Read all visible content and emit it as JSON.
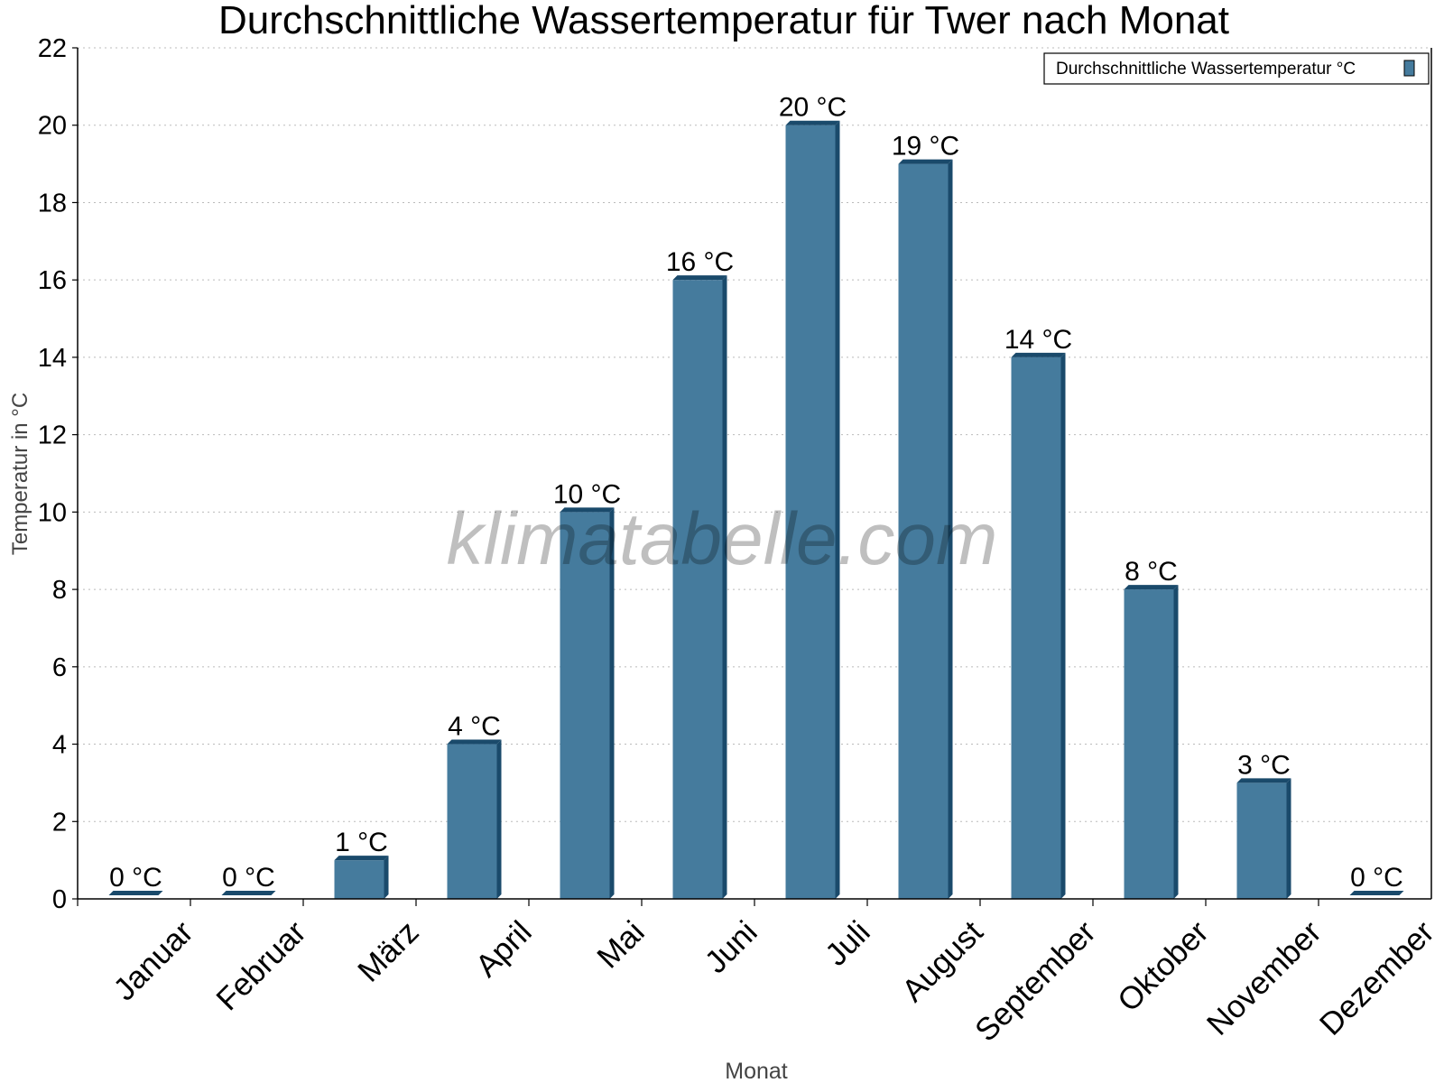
{
  "chart_data": {
    "type": "bar",
    "title": "Durchschnittliche Wassertemperatur für Twer nach Monat",
    "xlabel": "Monat",
    "ylabel": "Temperatur in °C",
    "categories": [
      "Januar",
      "Februar",
      "März",
      "April",
      "Mai",
      "Juni",
      "Juli",
      "August",
      "September",
      "Oktober",
      "November",
      "Dezember"
    ],
    "series": [
      {
        "name": "Durchschnittliche Wassertemperatur °C",
        "values": [
          0,
          0,
          1,
          4,
          10,
          16,
          20,
          19,
          14,
          8,
          3,
          0
        ],
        "color": "#457b9d"
      }
    ],
    "data_labels": [
      "0 °C",
      "0 °C",
      "1 °C",
      "4 °C",
      "10 °C",
      "16 °C",
      "20 °C",
      "19 °C",
      "14 °C",
      "8 °C",
      "3 °C",
      "0 °C"
    ],
    "ylim": [
      0,
      22
    ],
    "yticks": [
      0,
      2,
      4,
      6,
      8,
      10,
      12,
      14,
      16,
      18,
      20,
      22
    ],
    "grid": true,
    "legend_position": "top-right",
    "bar_side_color": "#1a4a6b",
    "watermark": "klimatabelle.com"
  }
}
